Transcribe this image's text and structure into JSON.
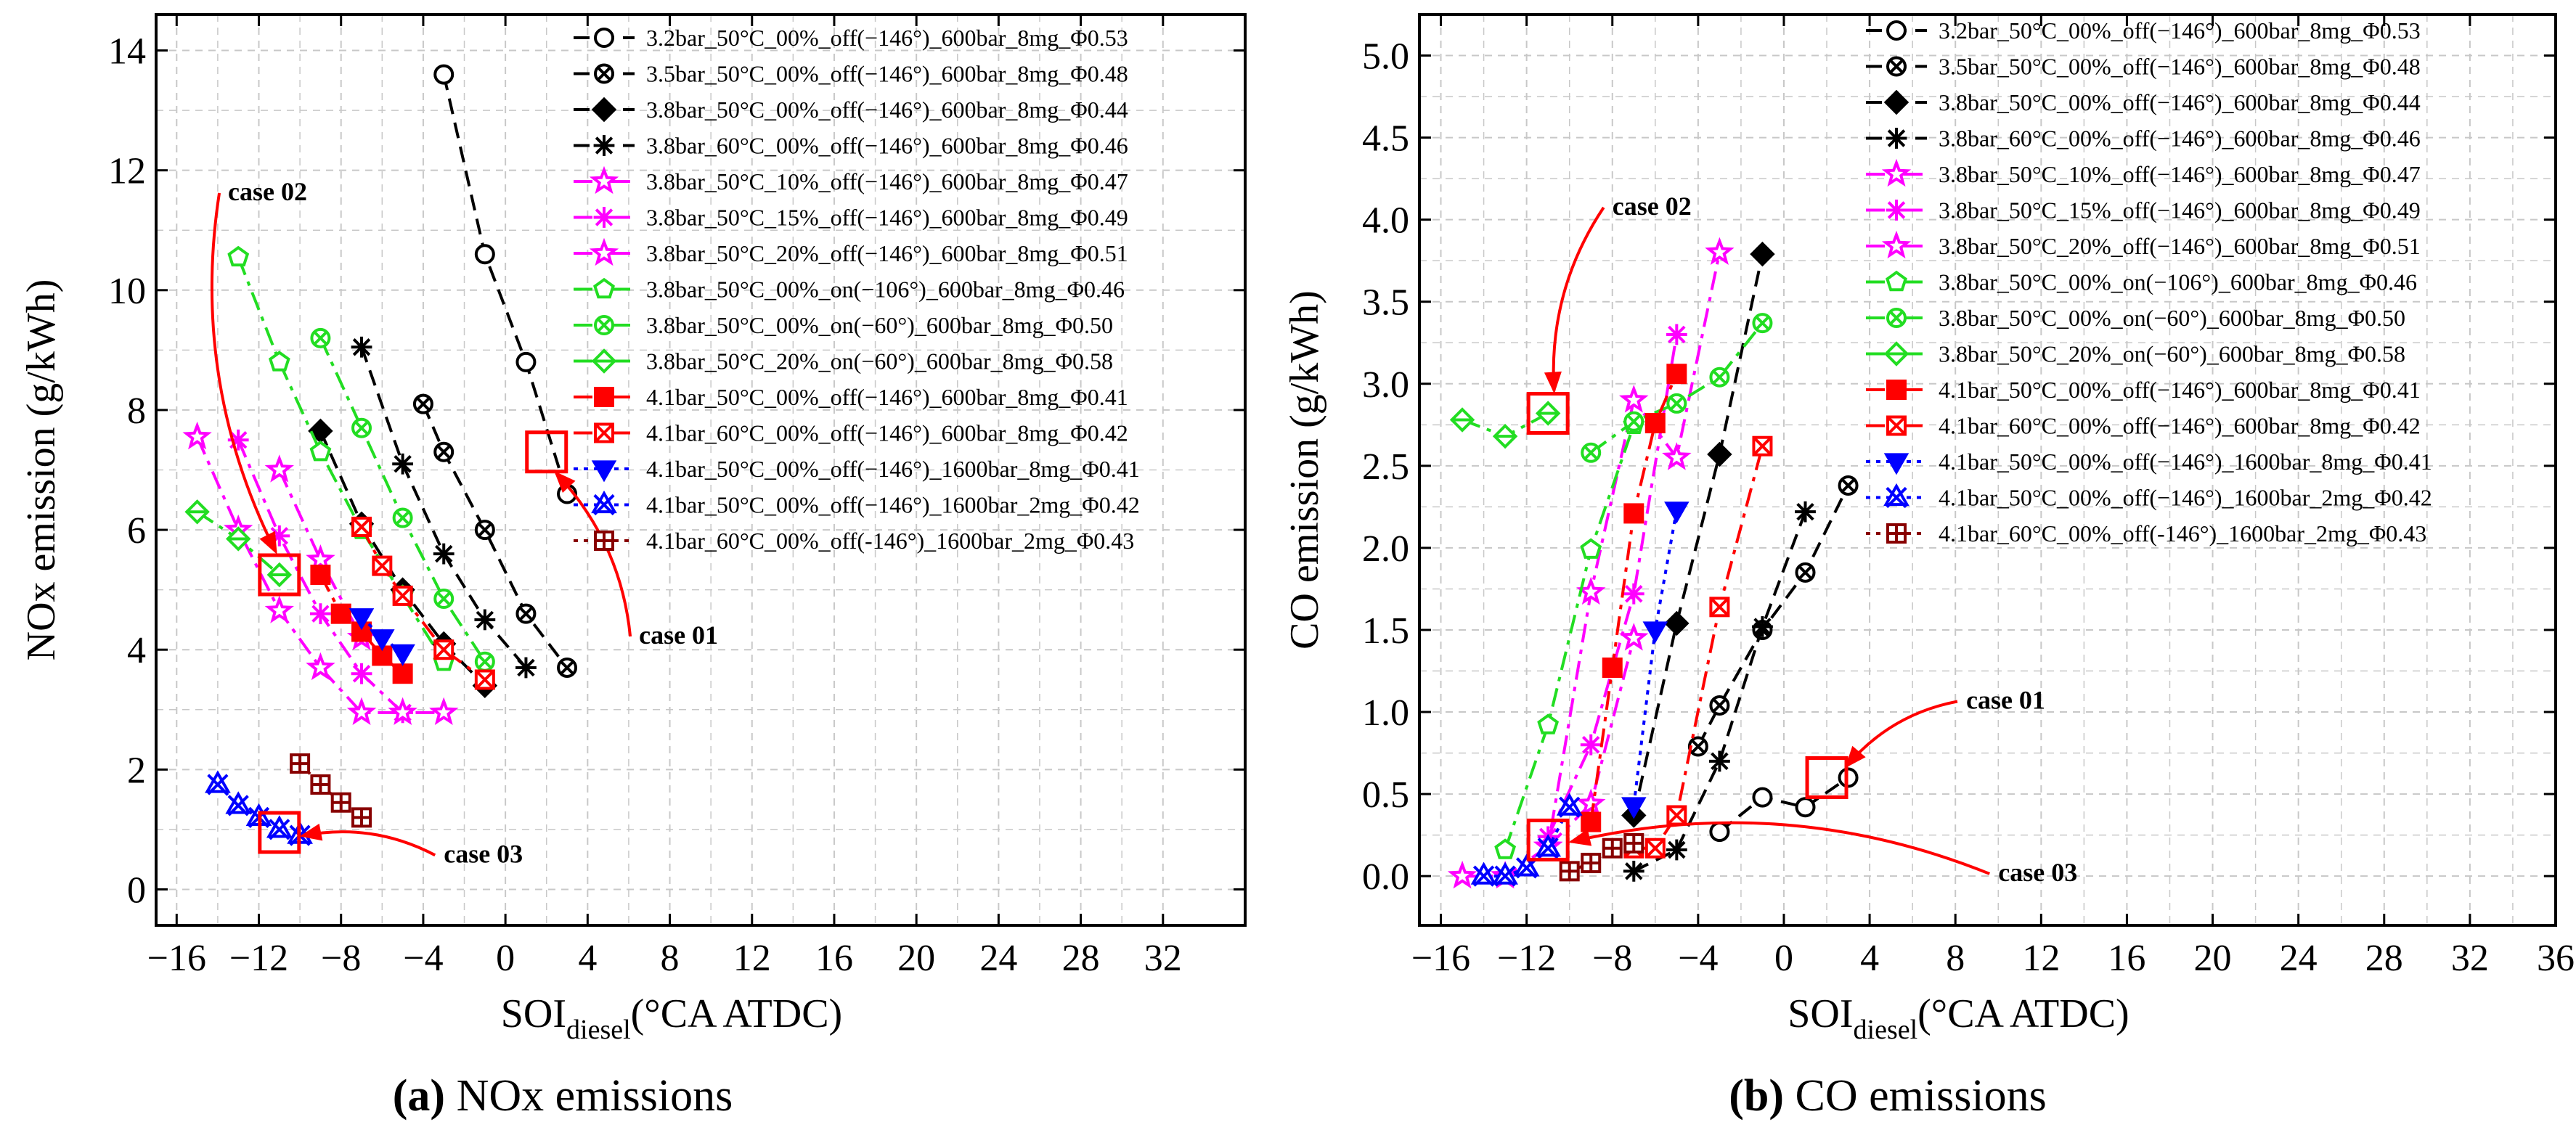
{
  "colors": {
    "black": "#000000",
    "magenta": "#ff00ff",
    "green": "#22dd22",
    "red": "#ff0000",
    "blue": "#0000ff",
    "brown": "#880000",
    "grid": "#c8c8c8"
  },
  "captions": {
    "a_letter": "(a)",
    "a_text": " NOx emissions",
    "b_letter": "(b)",
    "b_text": " CO emissions"
  },
  "chart_data": [
    {
      "type": "scatter",
      "id": "nox",
      "title": "NOx emissions",
      "xlabel_main": "SOI",
      "xlabel_sub": "diesel",
      "xlabel_rest": "(°CA ATDC)",
      "ylabel": "NOx emission (g/kWh)",
      "xlim": [
        -17,
        36
      ],
      "ylim": [
        -0.6,
        14.6
      ],
      "xticks": [
        -16,
        -12,
        -8,
        -4,
        0,
        4,
        8,
        12,
        16,
        20,
        24,
        28,
        32
      ],
      "yticks": [
        0,
        2,
        4,
        6,
        8,
        10,
        12,
        14
      ],
      "xtick_labels": [
        "−16",
        "−12",
        "−8",
        "−4",
        "0",
        "4",
        "8",
        "12",
        "16",
        "20",
        "24",
        "28",
        "32"
      ],
      "ytick_labels": [
        "0",
        "2",
        "4",
        "6",
        "8",
        "10",
        "12",
        "14"
      ],
      "grid": true,
      "legend_position": "top-right",
      "series": [
        {
          "name": "3.2bar_50°C_00%_off(−146°)_600bar_8mg_Φ0.53",
          "color": "#000000",
          "marker": "circle-open",
          "dash": "dash",
          "x": [
            -3,
            -1,
            1,
            3
          ],
          "y": [
            13.6,
            10.6,
            8.8,
            6.6
          ]
        },
        {
          "name": "3.5bar_50°C_00%_off(−146°)_600bar_8mg_Φ0.48",
          "color": "#000000",
          "marker": "circle-x",
          "dash": "dash",
          "x": [
            -4,
            -3,
            -1,
            1,
            3
          ],
          "y": [
            8.1,
            7.3,
            6.0,
            4.6,
            3.7
          ]
        },
        {
          "name": "3.8bar_50°C_00%_off(−146°)_600bar_8mg_Φ0.44",
          "color": "#000000",
          "marker": "diamond",
          "dash": "dash",
          "x": [
            -9,
            -7,
            -5,
            -3,
            -1
          ],
          "y": [
            7.65,
            6.1,
            5.0,
            4.1,
            3.4
          ]
        },
        {
          "name": "3.8bar_60°C_00%_off(−146°)_600bar_8mg_Φ0.46",
          "color": "#000000",
          "marker": "asterisk",
          "dash": "dash",
          "x": [
            -7,
            -5,
            -3,
            -1,
            1
          ],
          "y": [
            9.05,
            7.1,
            5.6,
            4.5,
            3.7
          ]
        },
        {
          "name": "3.8bar_50°C_10%_off(−146°)_600bar_8mg_Φ0.47",
          "color": "#ff00ff",
          "marker": "star",
          "dash": "dashdot",
          "x": [
            -11,
            -9,
            -7
          ],
          "y": [
            7.0,
            5.5,
            4.2
          ]
        },
        {
          "name": "3.8bar_50°C_15%_off(−146°)_600bar_8mg_Φ0.49",
          "color": "#ff00ff",
          "marker": "asterisk",
          "dash": "dashdot",
          "x": [
            -13,
            -11,
            -9,
            -7,
            -5
          ],
          "y": [
            7.5,
            5.9,
            4.6,
            3.6,
            2.95
          ]
        },
        {
          "name": "3.8bar_50°C_20%_off(−146°)_600bar_8mg_Φ0.51",
          "color": "#ff00ff",
          "marker": "star",
          "dash": "dashdot",
          "x": [
            -15,
            -13,
            -11,
            -9,
            -7,
            -5,
            -3
          ],
          "y": [
            7.55,
            6.0,
            4.65,
            3.7,
            2.95,
            2.95,
            2.95
          ]
        },
        {
          "name": "3.8bar_50°C_00%_on(−106°)_600bar_8mg_Φ0.46",
          "color": "#22dd22",
          "marker": "pentagon",
          "dash": "dashdot",
          "x": [
            -13,
            -11,
            -9,
            -7,
            -5,
            -3
          ],
          "y": [
            10.55,
            8.8,
            7.3,
            6.0,
            4.9,
            3.8
          ]
        },
        {
          "name": "3.8bar_50°C_00%_on(−60°)_600bar_8mg_Φ0.50",
          "color": "#22dd22",
          "marker": "circle-x",
          "dash": "dashdot",
          "x": [
            -9,
            -7,
            -5,
            -3,
            -1
          ],
          "y": [
            9.2,
            7.7,
            6.2,
            4.85,
            3.8
          ]
        },
        {
          "name": "3.8bar_50°C_20%_on(−60°)_600bar_8mg_Φ0.58",
          "color": "#22dd22",
          "marker": "diamond-open",
          "dash": "dashdot",
          "x": [
            -15,
            -13,
            -11
          ],
          "y": [
            6.3,
            5.85,
            5.25
          ]
        },
        {
          "name": "4.1bar_50°C_00%_off(−146°)_600bar_8mg_Φ0.41",
          "color": "#ff0000",
          "marker": "square",
          "dash": "dashdot",
          "x": [
            -9,
            -8,
            -7,
            -6,
            -5
          ],
          "y": [
            5.25,
            4.6,
            4.3,
            3.9,
            3.6
          ]
        },
        {
          "name": "4.1bar_60°C_00%_off(−146°)_600bar_8mg_Φ0.42",
          "color": "#ff0000",
          "marker": "square-x",
          "dash": "dashdot",
          "x": [
            -7,
            -6,
            -5,
            -3,
            -1
          ],
          "y": [
            6.05,
            5.4,
            4.9,
            4.0,
            3.5
          ]
        },
        {
          "name": "4.1bar_50°C_00%_off(−146°)_1600bar_8mg_Φ0.41",
          "color": "#0000ff",
          "marker": "triangle-down",
          "dash": "dot",
          "x": [
            -7,
            -6,
            -5
          ],
          "y": [
            4.55,
            4.2,
            3.95
          ]
        },
        {
          "name": "4.1bar_50°C_00%_off(−146°)_1600bar_2mg_Φ0.42",
          "color": "#0000ff",
          "marker": "triangle-x",
          "dash": "dot",
          "x": [
            -14,
            -13,
            -12,
            -11,
            -10
          ],
          "y": [
            1.75,
            1.4,
            1.2,
            1.0,
            0.9
          ]
        },
        {
          "name": "4.1bar_60°C_00%_off(-146°)_1600bar_2mg_Φ0.43",
          "color": "#880000",
          "marker": "square-plus",
          "dash": "dot",
          "x": [
            -10,
            -9,
            -8,
            -7
          ],
          "y": [
            2.1,
            1.75,
            1.45,
            1.2
          ]
        }
      ],
      "highlight_points": [
        {
          "label": "case 01",
          "x": 2,
          "y": 7.3
        },
        {
          "label": "case 02",
          "x": -11,
          "y": 5.25
        },
        {
          "label": "case 03",
          "x": -11,
          "y": 0.95
        }
      ],
      "annotations": [
        {
          "text": "case 01",
          "x": 6.5,
          "y": 4.1
        },
        {
          "text": "case 02",
          "x": -13.5,
          "y": 11.5
        },
        {
          "text": "case 03",
          "x": -3,
          "y": 0.45
        }
      ]
    },
    {
      "type": "scatter",
      "id": "co",
      "title": "CO emissions",
      "xlabel_main": "SOI",
      "xlabel_sub": "diesel",
      "xlabel_rest": "(°CA ATDC)",
      "ylabel": "CO emission (g/kWh)",
      "xlim": [
        -17,
        36
      ],
      "ylim": [
        -0.3,
        5.25
      ],
      "xticks": [
        -16,
        -12,
        -8,
        -4,
        0,
        4,
        8,
        12,
        16,
        20,
        24,
        28,
        32,
        36
      ],
      "yticks": [
        0,
        0.5,
        1,
        1.5,
        2,
        2.5,
        3,
        3.5,
        4,
        4.5,
        5
      ],
      "xtick_labels": [
        "−16",
        "−12",
        "−8",
        "−4",
        "0",
        "4",
        "8",
        "12",
        "16",
        "20",
        "24",
        "28",
        "32",
        "36"
      ],
      "ytick_labels": [
        "0.0",
        "0.5",
        "1.0",
        "1.5",
        "2.0",
        "2.5",
        "3.0",
        "3.5",
        "4.0",
        "4.5",
        "5.0"
      ],
      "grid": true,
      "legend_position": "top-right",
      "series": [
        {
          "name": "3.2bar_50°C_00%_off(−146°)_600bar_8mg_Φ0.53",
          "color": "#000000",
          "marker": "circle-open",
          "dash": "dash",
          "x": [
            -3,
            -1,
            1,
            3
          ],
          "y": [
            0.27,
            0.48,
            0.42,
            0.6
          ]
        },
        {
          "name": "3.5bar_50°C_00%_off(−146°)_600bar_8mg_Φ0.48",
          "color": "#000000",
          "marker": "circle-x",
          "dash": "dash",
          "x": [
            -4,
            -3,
            -1,
            1,
            3
          ],
          "y": [
            0.79,
            1.04,
            1.5,
            1.85,
            2.38
          ]
        },
        {
          "name": "3.8bar_50°C_00%_off(−146°)_600bar_8mg_Φ0.44",
          "color": "#000000",
          "marker": "diamond",
          "dash": "dash",
          "x": [
            -7,
            -5,
            -3,
            -1
          ],
          "y": [
            0.37,
            1.54,
            2.57,
            3.79
          ]
        },
        {
          "name": "3.8bar_60°C_00%_off(−146°)_600bar_8mg_Φ0.46",
          "color": "#000000",
          "marker": "asterisk",
          "dash": "dash",
          "x": [
            -7,
            -5,
            -3,
            -1,
            1
          ],
          "y": [
            0.03,
            0.16,
            0.7,
            1.52,
            2.22
          ]
        },
        {
          "name": "3.8bar_50°C_10%_off(−146°)_600bar_8mg_Φ0.47",
          "color": "#ff00ff",
          "marker": "star",
          "dash": "dashdot",
          "x": [
            -11,
            -9,
            -7
          ],
          "y": [
            0.18,
            0.44,
            1.45
          ]
        },
        {
          "name": "3.8bar_50°C_15%_off(−146°)_600bar_8mg_Φ0.49",
          "color": "#ff00ff",
          "marker": "asterisk",
          "dash": "dashdot",
          "x": [
            -11,
            -9,
            -7,
            -5
          ],
          "y": [
            0.24,
            0.8,
            1.72,
            3.3
          ]
        },
        {
          "name": "3.8bar_50°C_20%_off(−146°)_600bar_8mg_Φ0.51",
          "color": "#ff00ff",
          "marker": "star",
          "dash": "dashdot",
          "x": [
            -15,
            -13,
            -11,
            -9,
            -7,
            -5,
            -3
          ],
          "y": [
            0.0,
            0.0,
            0.18,
            1.73,
            2.9,
            2.55,
            3.8
          ]
        },
        {
          "name": "3.8bar_50°C_00%_on(−106°)_600bar_8mg_Φ0.46",
          "color": "#22dd22",
          "marker": "pentagon",
          "dash": "dashdot",
          "x": [
            -13,
            -11,
            -9,
            -7
          ],
          "y": [
            0.16,
            0.92,
            1.99,
            2.75
          ]
        },
        {
          "name": "3.8bar_50°C_00%_on(−60°)_600bar_8mg_Φ0.50",
          "color": "#22dd22",
          "marker": "circle-x",
          "dash": "dashdot",
          "x": [
            -9,
            -7,
            -5,
            -3,
            -1
          ],
          "y": [
            2.58,
            2.77,
            2.88,
            3.04,
            3.37
          ]
        },
        {
          "name": "3.8bar_50°C_20%_on(−60°)_600bar_8mg_Φ0.58",
          "color": "#22dd22",
          "marker": "diamond-open",
          "dash": "dashdot",
          "x": [
            -15,
            -13,
            -11
          ],
          "y": [
            2.78,
            2.68,
            2.82
          ]
        },
        {
          "name": "4.1bar_50°C_00%_off(−146°)_600bar_8mg_Φ0.41",
          "color": "#ff0000",
          "marker": "square",
          "dash": "dashdot",
          "x": [
            -9,
            -8,
            -7,
            -6,
            -5
          ],
          "y": [
            0.33,
            1.27,
            2.21,
            2.76,
            3.06
          ]
        },
        {
          "name": "4.1bar_60°C_00%_off(−146°)_600bar_8mg_Φ0.42",
          "color": "#ff0000",
          "marker": "square-x",
          "dash": "dashdot",
          "x": [
            -7,
            -6,
            -5,
            -3,
            -1
          ],
          "y": [
            0.17,
            0.17,
            0.37,
            1.64,
            2.62
          ]
        },
        {
          "name": "4.1bar_50°C_00%_off(−146°)_1600bar_8mg_Φ0.41",
          "color": "#0000ff",
          "marker": "triangle-down",
          "dash": "dot",
          "x": [
            -7,
            -6,
            -5
          ],
          "y": [
            0.43,
            1.5,
            2.23
          ]
        },
        {
          "name": "4.1bar_50°C_00%_off(−146°)_1600bar_2mg_Φ0.42",
          "color": "#0000ff",
          "marker": "triangle-x",
          "dash": "dot",
          "x": [
            -14,
            -13,
            -12,
            -11,
            -10
          ],
          "y": [
            0.0,
            0.0,
            0.05,
            0.17,
            0.42
          ]
        },
        {
          "name": "4.1bar_60°C_00%_off(-146°)_1600bar_2mg_Φ0.43",
          "color": "#880000",
          "marker": "square-plus",
          "dash": "dot",
          "x": [
            -10,
            -9,
            -8,
            -7
          ],
          "y": [
            0.03,
            0.08,
            0.17,
            0.2
          ]
        }
      ],
      "highlight_points": [
        {
          "label": "case 01",
          "x": 2,
          "y": 0.6
        },
        {
          "label": "case 02",
          "x": -11,
          "y": 2.82
        },
        {
          "label": "case 03",
          "x": -11,
          "y": 0.22
        }
      ],
      "annotations": [
        {
          "text": "case 01",
          "x": 8.5,
          "y": 1.02
        },
        {
          "text": "case 02",
          "x": -8,
          "y": 4.03
        },
        {
          "text": "case 03",
          "x": 10,
          "y": -0.03
        }
      ]
    }
  ]
}
